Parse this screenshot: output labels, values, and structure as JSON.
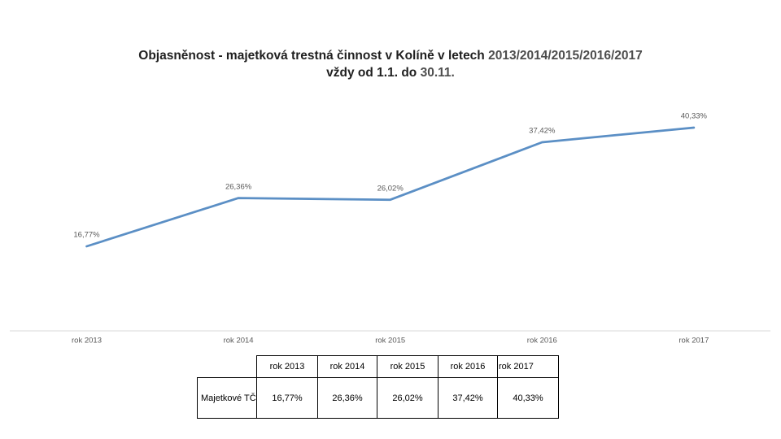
{
  "title": {
    "line1_main": "Objasněnost - majetková trestná činnost v Kolíně v letech ",
    "line1_years": "2013/2014/2015/2016/2017",
    "line2_main": "vždy od 1.1. do ",
    "line2_suffix": "30.11."
  },
  "chart_data": {
    "type": "line",
    "title": "Objasněnost - majetková trestná činnost v Kolíně v letech 2013/2014/2015/2016/2017 vždy od 1.1. do 30.11.",
    "categories": [
      "rok 2013",
      "rok 2014",
      "rok 2015",
      "rok 2016",
      "rok 2017"
    ],
    "series": [
      {
        "name": "Majetkové TČ",
        "values": [
          16.77,
          26.36,
          26.02,
          37.42,
          40.33
        ]
      }
    ],
    "data_labels": [
      "16,77%",
      "26,36%",
      "26,02%",
      "37,42%",
      "40,33%"
    ],
    "xlabel": "",
    "ylabel": "",
    "ylim": [
      0,
      45
    ],
    "grid": false,
    "legend": "none",
    "line_color": "#5B8FC5",
    "label_color": "#595959",
    "axis_line_color": "#D9D9D9"
  },
  "table": {
    "corner": "",
    "headers": [
      "rok 2013",
      "rok 2014",
      "rok 2015",
      "rok 2016",
      "rok 2017"
    ],
    "row_label": "Majetkové TČ",
    "values": [
      "16,77%",
      "26,36%",
      "26,02%",
      "37,42%",
      "40,33%"
    ]
  }
}
